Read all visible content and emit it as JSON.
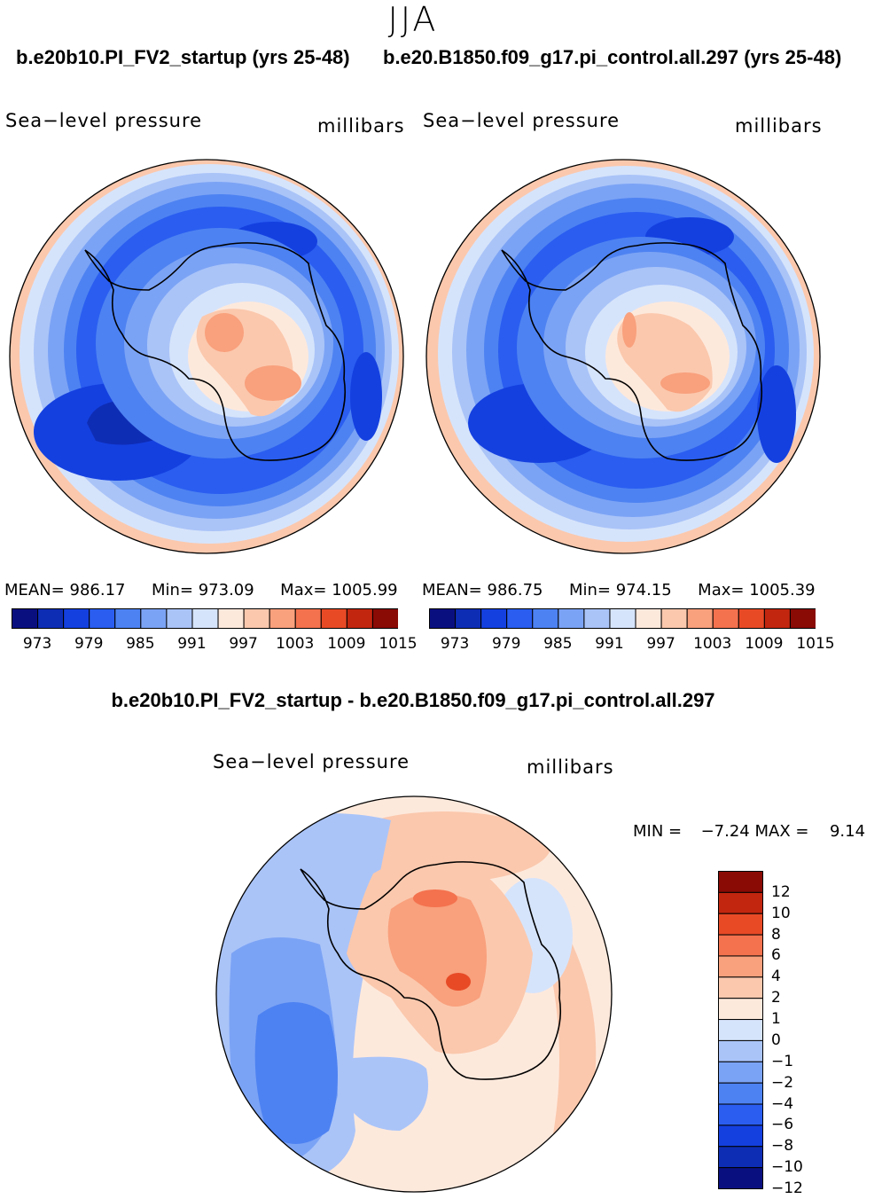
{
  "season": "JJA",
  "panels": [
    {
      "case_title": "b.e20b10.PI_FV2_startup (yrs 25-48)",
      "variable": "Sea−level pressure",
      "units": "millibars",
      "mean_label": "MEAN=",
      "mean": "986.17",
      "min_label": "Min=",
      "min": "973.09",
      "max_label": "Max=",
      "max": "1005.99"
    },
    {
      "case_title": "b.e20.B1850.f09_g17.pi_control.all.297 (yrs 25-48)",
      "variable": "Sea−level pressure",
      "units": "millibars",
      "mean_label": "MEAN=",
      "mean": "986.75",
      "min_label": "Min=",
      "min": "974.15",
      "max_label": "Max=",
      "max": "1005.39"
    }
  ],
  "abs_colorbar": {
    "colors": [
      "#0a0f80",
      "#0e2db5",
      "#1440e0",
      "#2a5df0",
      "#4d82f2",
      "#7ba3f5",
      "#aac4f8",
      "#d6e4fb",
      "#fde9dc",
      "#fbc8ad",
      "#f9a07c",
      "#f4724e",
      "#e84a26",
      "#c2260f",
      "#8a0a05"
    ],
    "tick_labels": [
      "973",
      "979",
      "985",
      "991",
      "997",
      "1003",
      "1009",
      "1015"
    ]
  },
  "diff": {
    "title": "b.e20b10.PI_FV2_startup - b.e20.B1850.f09_g17.pi_control.all.297",
    "variable": "Sea−level pressure",
    "units": "millibars",
    "min_label": "MIN =",
    "min": "−7.24",
    "max_label": "MAX =",
    "max": "9.14",
    "colorbar": {
      "colors": [
        "#0a0f80",
        "#0e2db5",
        "#1440e0",
        "#2a5df0",
        "#4d82f2",
        "#7ba3f5",
        "#aac4f8",
        "#d6e4fb",
        "#fde9dc",
        "#fbc8ad",
        "#f9a07c",
        "#f4724e",
        "#e84a26",
        "#c2260f",
        "#8a0a05"
      ],
      "tick_labels": [
        "12",
        "10",
        "8",
        "6",
        "4",
        "2",
        "1",
        "0",
        "−1",
        "−2",
        "−4",
        "−6",
        "−8",
        "−10",
        "−12"
      ]
    }
  }
}
